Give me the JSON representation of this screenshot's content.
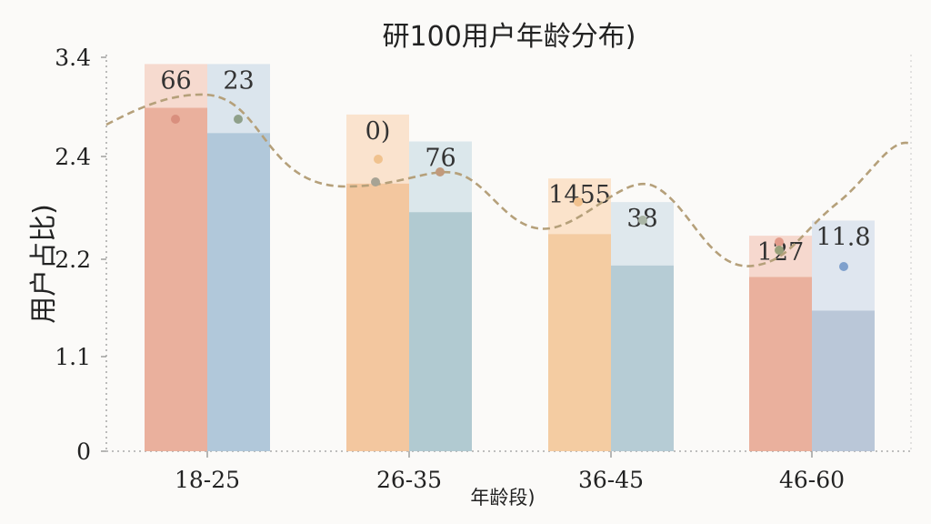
{
  "chart_data": {
    "type": "bar",
    "title": "研100用户年龄分布)",
    "xlabel": "年龄段)",
    "ylabel": "用户占比)",
    "categories": [
      "18-25",
      "26-35",
      "36-45",
      "46-60"
    ],
    "ytick_labels": [
      "0",
      "1.1",
      "2.2",
      "2.4",
      "3.4"
    ],
    "series": [
      {
        "values": [
          3.1,
          2.65,
          2.35,
          2.0
        ],
        "cap_values": [
          3.36,
          3.06,
          2.68,
          2.34
        ],
        "labels": [
          "66",
          "0)",
          "1455",
          "127"
        ]
      },
      {
        "values": [
          2.95,
          2.48,
          2.13,
          1.62
        ],
        "cap_values": [
          3.36,
          2.9,
          2.54,
          2.43
        ],
        "labels": [
          "23",
          "76",
          "38",
          "11.8"
        ]
      }
    ],
    "trend_line": {
      "style": "dashed",
      "color": "#b5a07a"
    },
    "colors": {
      "series_a": [
        "#e8a792",
        "#f2c195",
        "#f3c698",
        "#e8a792"
      ],
      "series_b": [
        "#a9c2d6",
        "#a9c4cc",
        "#aec6d0",
        "#b3c1d4"
      ],
      "cap_a": [
        "#f6d8cc",
        "#fae1cb",
        "#fbe2c8",
        "#f6d6cb"
      ],
      "cap_b": [
        "#d9e4ec",
        "#d9e6ea",
        "#dde7ec",
        "#dde5ee"
      ]
    },
    "grid": false
  }
}
